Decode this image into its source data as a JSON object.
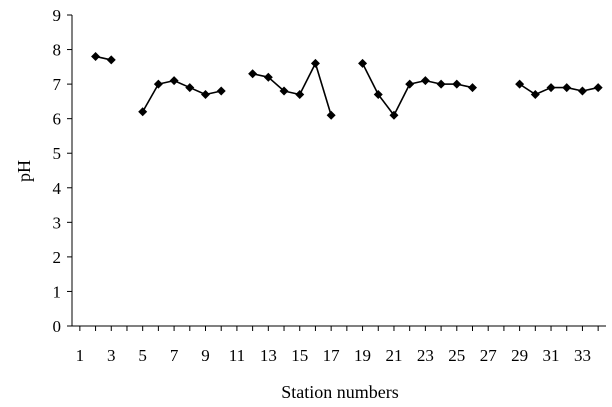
{
  "chart_data": {
    "type": "line",
    "title": "",
    "xlabel": "Station numbers",
    "ylabel": "pH",
    "xlim": [
      1,
      34
    ],
    "ylim": [
      0,
      9
    ],
    "x_tick_labels": [
      "1",
      "3",
      "5",
      "7",
      "9",
      "11",
      "13",
      "15",
      "17",
      "19",
      "21",
      "23",
      "25",
      "27",
      "29",
      "31",
      "33"
    ],
    "y_tick_labels": [
      "0",
      "1",
      "2",
      "3",
      "4",
      "5",
      "6",
      "7",
      "8",
      "9"
    ],
    "grid": false,
    "legend": "none",
    "series": [
      {
        "color": "#000000",
        "marker": "diamond",
        "points": [
          [
            2,
            7.8
          ],
          [
            3,
            7.7
          ],
          [
            5,
            6.2
          ],
          [
            6,
            7.0
          ],
          [
            7,
            7.1
          ],
          [
            8,
            6.9
          ],
          [
            9,
            6.7
          ],
          [
            10,
            6.8
          ],
          [
            12,
            7.3
          ],
          [
            13,
            7.2
          ],
          [
            14,
            6.8
          ],
          [
            15,
            6.7
          ],
          [
            16,
            7.6
          ],
          [
            17,
            6.1
          ],
          [
            19,
            7.6
          ],
          [
            20,
            6.7
          ],
          [
            21,
            6.1
          ],
          [
            22,
            7.0
          ],
          [
            23,
            7.1
          ],
          [
            24,
            7.0
          ],
          [
            25,
            7.0
          ],
          [
            26,
            6.9
          ],
          [
            29,
            7.0
          ],
          [
            30,
            6.7
          ],
          [
            31,
            6.9
          ],
          [
            32,
            6.9
          ],
          [
            33,
            6.8
          ],
          [
            34,
            6.9
          ]
        ]
      }
    ]
  }
}
